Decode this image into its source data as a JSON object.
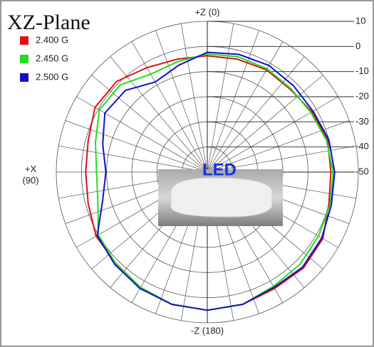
{
  "chart_data": {
    "type": "polar",
    "title": "XZ-Plane",
    "annotation": "LED",
    "legend": "top-left",
    "grid": true,
    "rlim": [
      -50,
      10
    ],
    "rticks": [
      10,
      0,
      -10,
      -20,
      -30,
      -40,
      -50
    ],
    "theta_ticks": [
      {
        "value": 0,
        "label": "+Z (0)"
      },
      {
        "value": 90,
        "label": "+X (90)"
      },
      {
        "value": 180,
        "label": "-Z (180)"
      }
    ],
    "theta": [
      0,
      15,
      30,
      45,
      60,
      75,
      90,
      105,
      120,
      135,
      150,
      165,
      180,
      195,
      210,
      225,
      240,
      255,
      270,
      285,
      300,
      315,
      330,
      345
    ],
    "series": [
      {
        "name": "2.400 G",
        "color": "#e01010",
        "values": [
          -3.7,
          -3.5,
          -2,
          1,
          1.5,
          -1,
          -1.7,
          -1,
          1,
          1.4,
          3,
          4.5,
          5,
          4.5,
          3.5,
          4,
          3,
          0,
          -0.9,
          -0.5,
          -2,
          -3.4,
          -3,
          -3.5
        ]
      },
      {
        "name": "2.450 G",
        "color": "#22dd22",
        "values": [
          -3,
          -4.5,
          -5,
          -1,
          -0.5,
          -4,
          -6,
          -5,
          0,
          1.5,
          3,
          4.5,
          5,
          4.5,
          2.5,
          2,
          1,
          0.5,
          0,
          -1,
          -2.5,
          -3,
          -2.5,
          -2.5
        ]
      },
      {
        "name": "2.500 G",
        "color": "#1010cc",
        "values": [
          -2.3,
          -6,
          -8.6,
          -4,
          -3,
          -7,
          -9.7,
          -7,
          0.5,
          2,
          3.5,
          4.5,
          5,
          4.5,
          3,
          3.5,
          2.5,
          1,
          0.6,
          0,
          -1.5,
          -1.5,
          -1,
          -1.5
        ]
      }
    ]
  }
}
